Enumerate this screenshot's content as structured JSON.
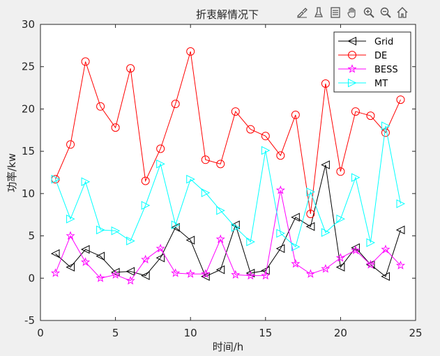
{
  "chart_data": {
    "type": "line",
    "title": "折衷解情况下",
    "xlabel": "时间/h",
    "ylabel": "功率/kw",
    "xlim": [
      0,
      25
    ],
    "ylim": [
      -5,
      30
    ],
    "xticks": [
      0,
      5,
      10,
      15,
      20,
      25
    ],
    "yticks": [
      -5,
      0,
      5,
      10,
      15,
      20,
      25,
      30
    ],
    "grid": false,
    "legend_position": "top-right",
    "x": [
      1,
      2,
      3,
      4,
      5,
      6,
      7,
      8,
      9,
      10,
      11,
      12,
      13,
      14,
      15,
      16,
      17,
      18,
      19,
      20,
      21,
      22,
      23,
      24
    ],
    "series": [
      {
        "name": "Grid",
        "color": "#000000",
        "marker": "triangle-left",
        "values": [
          2.9,
          1.3,
          3.4,
          2.6,
          0.7,
          0.8,
          0.3,
          2.4,
          6.0,
          4.5,
          0.2,
          1.0,
          6.3,
          0.6,
          0.9,
          3.5,
          7.2,
          6.1,
          13.4,
          1.3,
          3.6,
          1.6,
          0.2,
          5.7
        ]
      },
      {
        "name": "DE",
        "color": "#ff0000",
        "marker": "circle",
        "values": [
          11.7,
          15.8,
          25.6,
          20.3,
          17.8,
          24.8,
          11.5,
          15.3,
          20.6,
          26.8,
          14.0,
          13.5,
          19.7,
          17.6,
          16.8,
          14.5,
          19.3,
          7.6,
          23.0,
          12.6,
          19.7,
          19.2,
          17.2,
          21.1
        ]
      },
      {
        "name": "BESS",
        "color": "#ff00ff",
        "marker": "star",
        "values": [
          0.6,
          5.0,
          1.9,
          0.0,
          0.4,
          -0.3,
          2.2,
          3.5,
          0.6,
          0.5,
          0.5,
          4.6,
          0.4,
          0.3,
          0.3,
          10.4,
          1.7,
          0.5,
          1.1,
          2.4,
          3.3,
          1.6,
          3.4,
          1.5
        ]
      },
      {
        "name": "MT",
        "color": "#00ffff",
        "marker": "triangle-right",
        "values": [
          11.7,
          7.0,
          11.4,
          5.7,
          5.6,
          4.4,
          8.6,
          13.5,
          6.3,
          11.7,
          10.1,
          8.0,
          6.0,
          4.3,
          15.1,
          5.3,
          3.7,
          10.2,
          5.4,
          7.0,
          11.9,
          4.2,
          18.0,
          8.8
        ]
      }
    ]
  },
  "toolbar": {
    "icons": [
      "brush-icon",
      "pan-style-icon",
      "legend-icon",
      "hand-pan-icon",
      "zoom-in-icon",
      "zoom-out-icon",
      "home-icon"
    ]
  }
}
